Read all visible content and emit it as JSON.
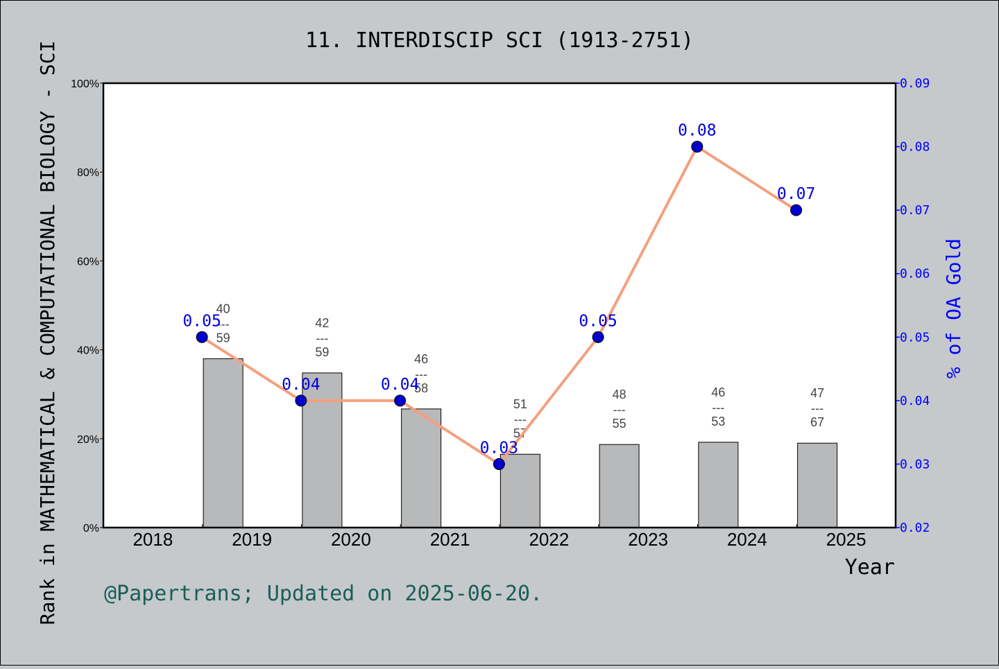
{
  "chart_data": {
    "type": "bar+line",
    "title": "11. INTERDISCIP SCI (1913-2751)",
    "xlabel": "Year",
    "ylabel_left": "Rank in MATHEMATICAL & COMPUTATIONAL BIOLOGY - SCI",
    "ylabel_right": "% of OA Gold",
    "credit": "@Papertrans; Updated on 2025-06-20.",
    "categories": [
      "2018",
      "2019",
      "2020",
      "2021",
      "2022",
      "2023",
      "2024",
      "2025"
    ],
    "left_axis": {
      "ylim": [
        0,
        100
      ],
      "ticks": [
        "0%",
        "20%",
        "40%",
        "60%",
        "80%",
        "100%"
      ]
    },
    "right_axis": {
      "ylim": [
        0.02,
        0.09
      ],
      "ticks": [
        "0.02",
        "0.03",
        "0.04",
        "0.05",
        "0.06",
        "0.07",
        "0.08",
        "0.09"
      ]
    },
    "bars": [
      {
        "year": "2018",
        "value": null,
        "rank": null,
        "total": null
      },
      {
        "year": "2019",
        "value": 38.0,
        "rank": "40",
        "total": "59"
      },
      {
        "year": "2020",
        "value": 34.8,
        "rank": "42",
        "total": "59"
      },
      {
        "year": "2021",
        "value": 26.7,
        "rank": "46",
        "total": "58"
      },
      {
        "year": "2022",
        "value": 16.5,
        "rank": "51",
        "total": "57"
      },
      {
        "year": "2023",
        "value": 18.7,
        "rank": "48",
        "total": "55"
      },
      {
        "year": "2024",
        "value": 19.2,
        "rank": "46",
        "total": "53"
      },
      {
        "year": "2025",
        "value": 19.0,
        "rank": "47",
        "total": "67"
      }
    ],
    "bar_label_separator": "---",
    "line": {
      "name": "% of OA Gold",
      "points": [
        {
          "year": "2019",
          "value": 0.05,
          "label": "0.05"
        },
        {
          "year": "2020",
          "value": 0.04,
          "label": "0.04"
        },
        {
          "year": "2021",
          "value": 0.04,
          "label": "0.04"
        },
        {
          "year": "2022",
          "value": 0.03,
          "label": "0.03"
        },
        {
          "year": "2023",
          "value": 0.05,
          "label": "0.05"
        },
        {
          "year": "2024",
          "value": 0.08,
          "label": "0.08"
        },
        {
          "year": "2025",
          "value": 0.07,
          "label": "0.07"
        }
      ]
    },
    "colors": {
      "background": "#c5c9cc",
      "plot_background": "#ffffff",
      "bar_fill": "#b8b9bb",
      "line": "#f4a07e",
      "marker": "#0000cc",
      "right_axis": "#0000ff",
      "credit": "#1a5e57"
    }
  }
}
